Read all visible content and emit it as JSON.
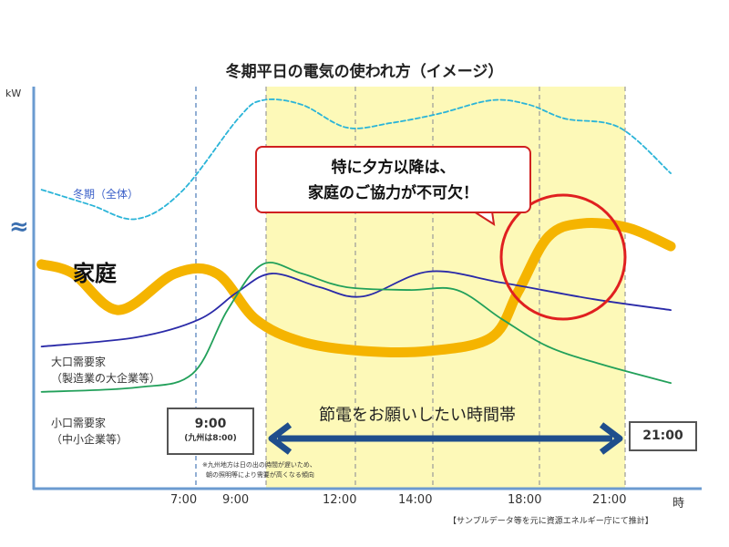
{
  "chart_data": {
    "type": "line",
    "title": "冬期平日の電気の使われ方（イメージ）",
    "ylabel": "kW",
    "xlabel": "時",
    "x_unit": "hour",
    "x_ticks": [
      7,
      9,
      12,
      14,
      18,
      21
    ],
    "x_tick_labels": [
      "7:00",
      "9:00",
      "12:00",
      "14:00",
      "18:00",
      "21:00"
    ],
    "ylim": [
      0,
      100
    ],
    "axis_break_symbol": "≈",
    "highlight_band": {
      "from": 9,
      "to": 21,
      "color": "#fdf9b8"
    },
    "series": [
      {
        "name": "冬期（全体）",
        "color": "#2ab4d8",
        "style": "dashed",
        "x": [
          2.6,
          4.0,
          5.3,
          6.6,
          8.2,
          8.9,
          10.2,
          11.7,
          12.9,
          14.2,
          16.2,
          17.6,
          18.9,
          20.8,
          22.6
        ],
        "y": [
          74.3,
          70.5,
          67,
          73.9,
          92,
          96.6,
          95.5,
          89.8,
          90.9,
          93.2,
          96.6,
          95.5,
          92,
          89.8,
          78.4
        ]
      },
      {
        "name": "家庭",
        "color": "#f5b400",
        "style": "thick",
        "x": [
          2.6,
          3.5,
          4.8,
          6.4,
          7.6,
          8.7,
          10.2,
          12.2,
          13.9,
          16.2,
          17.2,
          18.3,
          19.5,
          21.1,
          22.6
        ],
        "y": [
          55.7,
          53.4,
          44.3,
          53.4,
          53.4,
          42,
          36.4,
          34.1,
          34.1,
          37.5,
          48.9,
          62.5,
          65.9,
          64.8,
          60.2
        ]
      },
      {
        "name": "大口需要家（製造業の大企業等）",
        "color": "#2a2aa8",
        "style": "solid",
        "x": [
          2.6,
          5.3,
          7.1,
          8.2,
          9.2,
          10.8,
          12.2,
          13.9,
          16.6,
          19.9,
          22.6
        ],
        "y": [
          35.2,
          37.5,
          42,
          48.9,
          53.4,
          50,
          47.7,
          53.9,
          51.1,
          47,
          44.3
        ]
      },
      {
        "name": "小口需要家（中小企業等）",
        "color": "#22a05a",
        "style": "solid",
        "x": [
          2.6,
          5.3,
          6.9,
          7.9,
          8.9,
          10.2,
          11.7,
          13.4,
          14.9,
          16.6,
          18.3,
          20.2,
          22.6
        ],
        "y": [
          23.9,
          25,
          28.4,
          44.3,
          55.7,
          53.4,
          50,
          49.3,
          49.3,
          42,
          35.2,
          30.7,
          26.1
        ]
      }
    ],
    "labels": {
      "winter": "冬期（全体）",
      "household": "家庭",
      "large1": "大口需要家",
      "large2": "（製造業の大企業等）",
      "small1": "小口需要家",
      "small2": "（中小企業等）"
    },
    "annotations": {
      "callout1": "特に夕方以降は、",
      "callout2": "家庭のご協力が不可欠！",
      "band_label": "節電をお願いしたい時間帯",
      "start_time": "9:00",
      "start_note": "(九州は8:00)",
      "end_time": "21:00",
      "footnote1": "※九州地方は日の出の時間が遅いため、",
      "footnote2": "朝の照明等により需要が高くなる傾向",
      "source": "【サンプルデータ等を元に資源エネルギー庁にて推計】",
      "highlight_circle_color": "#e02020"
    }
  }
}
